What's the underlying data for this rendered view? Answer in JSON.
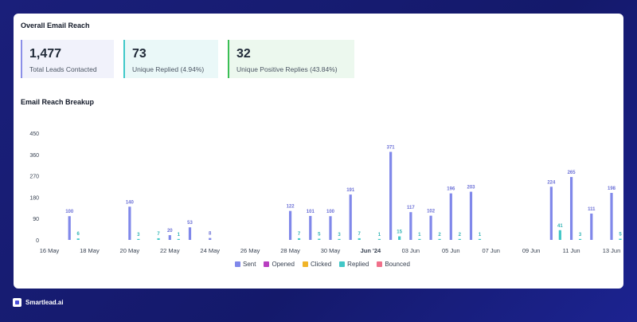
{
  "summary": {
    "title": "Overall Email Reach",
    "stats": [
      {
        "value": "1,477",
        "label": "Total Leads Contacted",
        "color": "#8b8fe8",
        "bg": "#f1f2fb"
      },
      {
        "value": "73",
        "label": "Unique Replied (4.94%)",
        "color": "#3fc9c9",
        "bg": "#eaf8f8"
      },
      {
        "value": "32",
        "label": "Unique Positive Replies (43.84%)",
        "color": "#3bbf55",
        "bg": "#ecf8ee"
      }
    ]
  },
  "breakup": {
    "title": "Email Reach Breakup"
  },
  "brand": {
    "name": "Smartlead.ai"
  },
  "chart_data": {
    "type": "bar",
    "ylim": [
      0,
      450
    ],
    "yticks": [
      0,
      90,
      180,
      270,
      360,
      450
    ],
    "xlim": [
      16,
      44
    ],
    "xticks": [
      {
        "x": 16,
        "label": "16 May",
        "bold": false
      },
      {
        "x": 18,
        "label": "18 May",
        "bold": false
      },
      {
        "x": 20,
        "label": "20 May",
        "bold": false
      },
      {
        "x": 22,
        "label": "22 May",
        "bold": false
      },
      {
        "x": 24,
        "label": "24 May",
        "bold": false
      },
      {
        "x": 26,
        "label": "26 May",
        "bold": false
      },
      {
        "x": 28,
        "label": "28 May",
        "bold": false
      },
      {
        "x": 30,
        "label": "30 May",
        "bold": false
      },
      {
        "x": 32,
        "label": "Jun '24",
        "bold": true
      },
      {
        "x": 34,
        "label": "03 Jun",
        "bold": false
      },
      {
        "x": 36,
        "label": "05 Jun",
        "bold": false
      },
      {
        "x": 38,
        "label": "07 Jun",
        "bold": false
      },
      {
        "x": 40,
        "label": "09 Jun",
        "bold": false
      },
      {
        "x": 42,
        "label": "11 Jun",
        "bold": false
      },
      {
        "x": 44,
        "label": "13 Jun",
        "bold": false
      }
    ],
    "series": [
      {
        "name": "Sent",
        "color": "#8088ea"
      },
      {
        "name": "Opened",
        "color": "#b83fc0"
      },
      {
        "name": "Clicked",
        "color": "#f0b429"
      },
      {
        "name": "Replied",
        "color": "#42c7c7"
      },
      {
        "name": "Bounced",
        "color": "#f0708a"
      }
    ],
    "days": [
      {
        "x": 17,
        "sent": 100,
        "replied": 6
      },
      {
        "x": 20,
        "sent": 140,
        "replied": 3
      },
      {
        "x": 21,
        "sent": null,
        "replied": 7
      },
      {
        "x": 22,
        "sent": 20,
        "replied": 1
      },
      {
        "x": 23,
        "sent": 53,
        "replied": null
      },
      {
        "x": 24,
        "sent": 8,
        "replied": null
      },
      {
        "x": 28,
        "sent": 122,
        "replied": 7
      },
      {
        "x": 29,
        "sent": 101,
        "replied": 5
      },
      {
        "x": 30,
        "sent": 100,
        "replied": 3
      },
      {
        "x": 31,
        "sent": 191,
        "replied": 7
      },
      {
        "x": 32,
        "sent": null,
        "replied": 1
      },
      {
        "x": 33,
        "sent": 371,
        "replied": 15
      },
      {
        "x": 34,
        "sent": 117,
        "replied": 1
      },
      {
        "x": 35,
        "sent": 102,
        "replied": 2
      },
      {
        "x": 36,
        "sent": 196,
        "replied": 2
      },
      {
        "x": 37,
        "sent": 203,
        "replied": 1
      },
      {
        "x": 41,
        "sent": 224,
        "replied": 41
      },
      {
        "x": 42,
        "sent": 265,
        "replied": 3
      },
      {
        "x": 43,
        "sent": 111,
        "replied": null
      },
      {
        "x": 44,
        "sent": 198,
        "replied": 5
      }
    ]
  }
}
